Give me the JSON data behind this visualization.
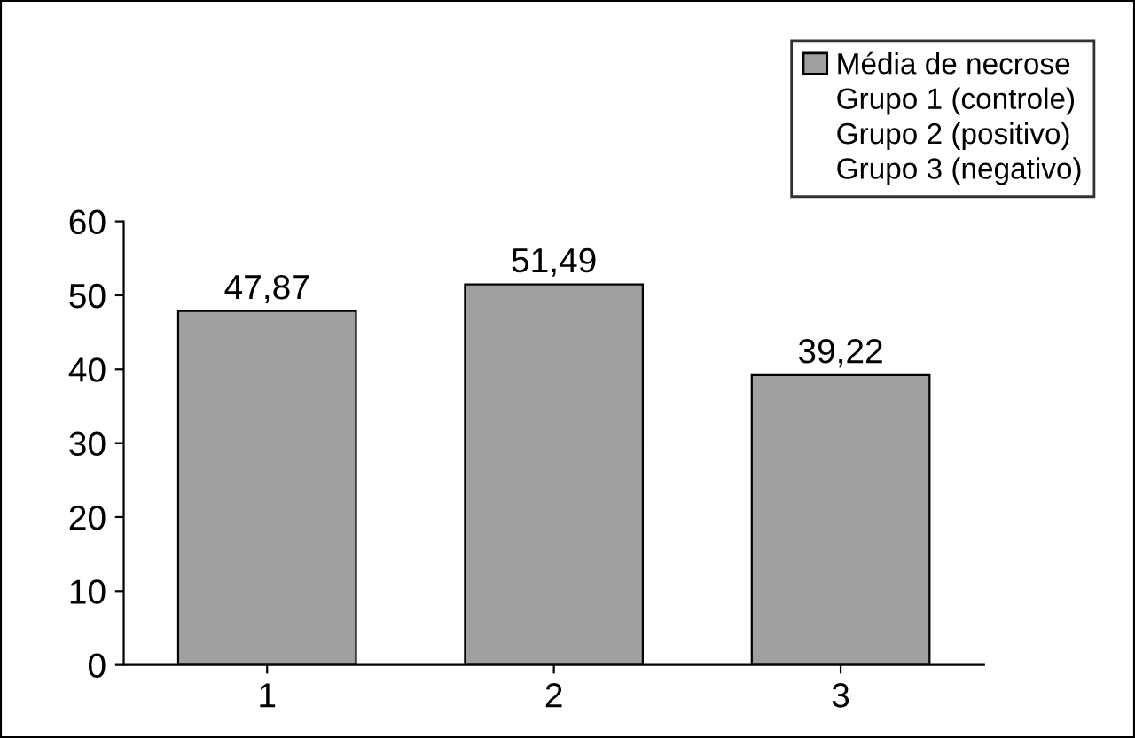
{
  "chart_data": {
    "type": "bar",
    "categories": [
      "1",
      "2",
      "3"
    ],
    "series": [
      {
        "name": "Média de necrose",
        "color": "#a0a0a0",
        "values": [
          47.87,
          51.49,
          39.22
        ],
        "value_labels": [
          "47,87",
          "51,49",
          "39,22"
        ]
      }
    ],
    "annotations": [
      "Grupo 1 (controle)",
      "Grupo 2 (positivo)",
      "Grupo 3 (negativo)"
    ],
    "ylim": [
      0,
      60
    ],
    "yticks": [
      0,
      10,
      20,
      30,
      40,
      50,
      60
    ],
    "legend": "top right"
  }
}
